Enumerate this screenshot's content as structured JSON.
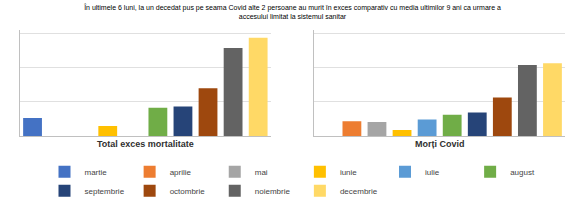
{
  "chart_data": [
    {
      "type": "bar",
      "title": "În ultimele 6 luni, la un decedat pus pe seama Covid alte 2 persoane au murit în exces comparativ cu media ultimilor 9 ani ca urmare a\naccesului limitat la sistemul sanitar",
      "xlabel": "Total exces mortalitate",
      "categories": [
        "martie",
        "aprilie",
        "mai",
        "iunie",
        "iulie",
        "august",
        "septembrie",
        "octombrie",
        "noiembrie",
        "decembrie"
      ],
      "values": [
        1050,
        0,
        0,
        580,
        0,
        1650,
        1720,
        2800,
        5150,
        5750
      ],
      "colors": [
        "#4472C4",
        "#ED7D31",
        "#A5A5A5",
        "#FFC000",
        "#5B9BD5",
        "#70AD47",
        "#264478",
        "#9E480E",
        "#636363",
        "#FFD966"
      ],
      "ylim": [
        0,
        6200
      ],
      "yticks": [
        2000,
        4000,
        6000
      ],
      "grid": true,
      "tick_labels": false,
      "legend": "bottom"
    },
    {
      "type": "bar",
      "xlabel": "Morți Covid",
      "categories": [
        "martie",
        "aprilie",
        "mai",
        "iunie",
        "iulie",
        "august",
        "septembrie",
        "octombrie",
        "noiembrie",
        "decembrie"
      ],
      "values": [
        0,
        870,
        820,
        350,
        960,
        1250,
        1380,
        2250,
        4150,
        4250
      ],
      "colors": [
        "#4472C4",
        "#ED7D31",
        "#A5A5A5",
        "#FFC000",
        "#5B9BD5",
        "#70AD47",
        "#264478",
        "#9E480E",
        "#636363",
        "#FFD966"
      ],
      "ylim": [
        0,
        6200
      ],
      "yticks": [
        2000,
        4000,
        6000
      ],
      "grid": true,
      "tick_labels": false
    }
  ]
}
